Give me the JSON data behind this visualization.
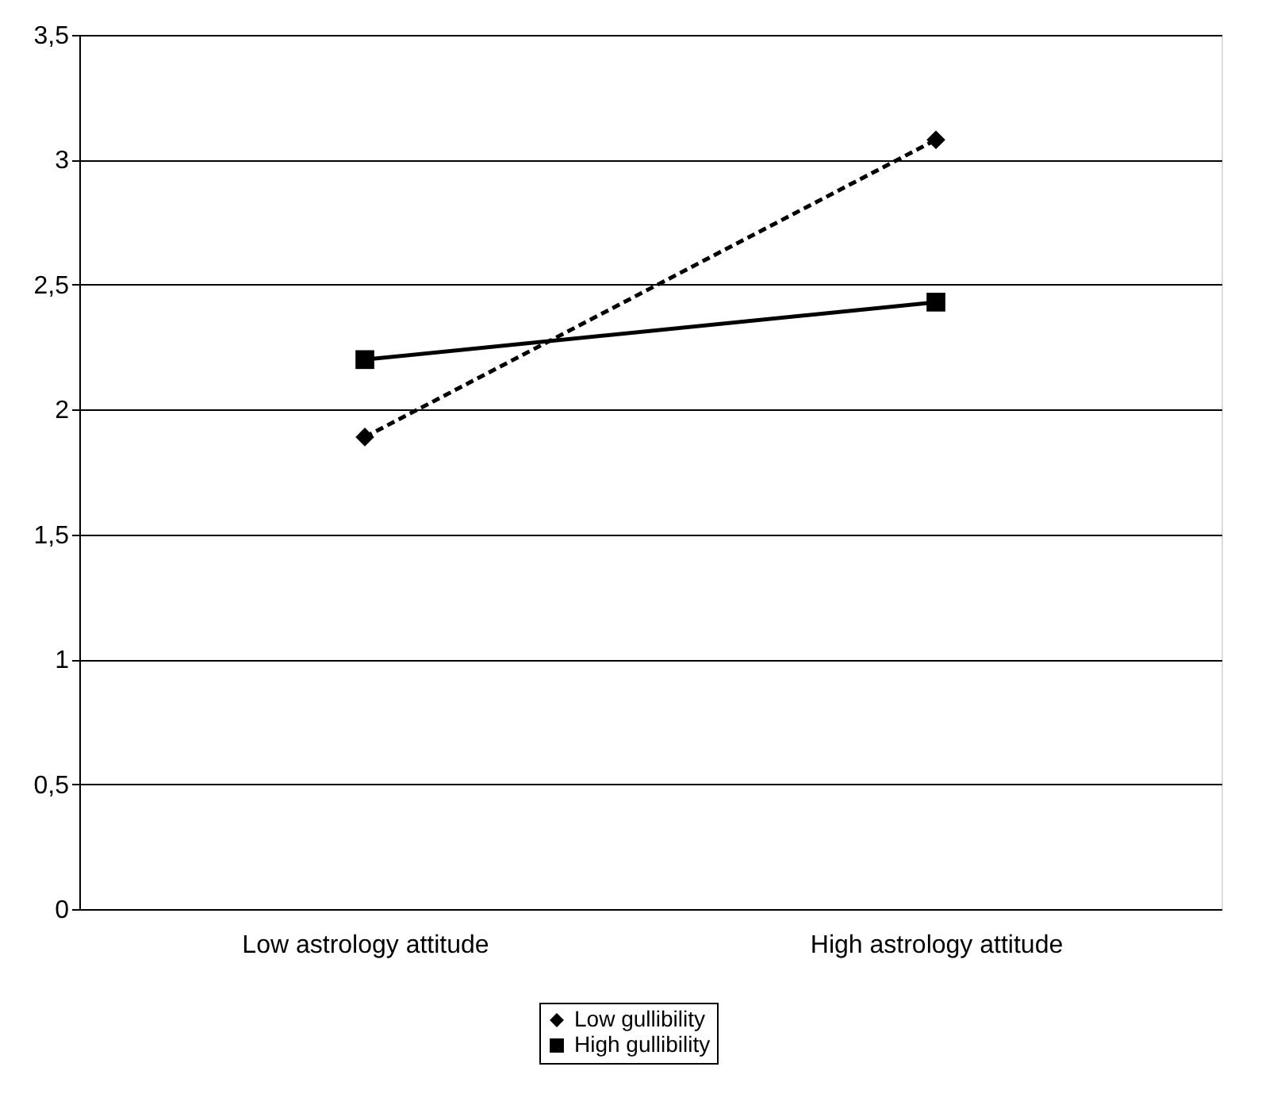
{
  "chart_data": {
    "type": "line",
    "categories": [
      "Low astrology attitude",
      "High astrology attitude"
    ],
    "series": [
      {
        "name": "Low gullibility",
        "color": "#000000",
        "values": [
          1.89,
          3.08
        ],
        "marker": "diamond",
        "line_style": "dashed"
      },
      {
        "name": "High gullibility",
        "color": "#000000",
        "values": [
          2.2,
          2.43
        ],
        "marker": "square",
        "line_style": "solid"
      }
    ],
    "ylim": [
      0,
      3.5
    ],
    "yticks": [
      0,
      {
        "value": 0.5,
        "label": "0,5"
      },
      1,
      {
        "value": 1.5,
        "label": "1,5"
      },
      2,
      {
        "value": 2.5,
        "label": "2,5"
      },
      3,
      {
        "value": 3.5,
        "label": "3,5"
      }
    ],
    "grid": "y",
    "legend": "bottom"
  }
}
